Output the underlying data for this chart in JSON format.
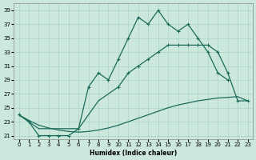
{
  "xlabel": "Humidex (Indice chaleur)",
  "bg_color": "#cce8dd",
  "grid_color": "#aad4c4",
  "line_color": "#1a6b5a",
  "xlim": [
    -0.5,
    23.5
  ],
  "ylim": [
    20.5,
    40
  ],
  "xticks": [
    0,
    1,
    2,
    3,
    4,
    5,
    6,
    7,
    8,
    9,
    10,
    11,
    12,
    13,
    14,
    15,
    16,
    17,
    18,
    19,
    20,
    21,
    22,
    23
  ],
  "yticks": [
    21,
    23,
    25,
    27,
    29,
    31,
    33,
    35,
    37,
    39
  ],
  "line1_x": [
    0,
    1,
    2,
    3,
    4,
    5,
    6,
    7,
    8,
    9,
    10,
    11,
    12,
    13,
    14,
    15,
    16,
    17,
    18,
    19,
    20,
    21
  ],
  "line1_y": [
    24,
    23,
    21,
    21,
    21,
    21,
    22,
    28,
    30,
    29,
    32,
    35,
    38,
    37,
    39,
    37,
    36,
    37,
    35,
    33,
    30,
    29
  ],
  "line2_x": [
    0,
    1,
    2,
    3,
    4,
    5,
    6,
    7,
    8,
    9,
    10,
    11,
    12,
    13,
    14,
    15,
    16,
    17,
    18,
    19,
    20,
    21,
    22,
    23
  ],
  "line2_y": [
    24,
    23,
    22,
    22,
    22,
    22,
    22,
    24,
    26,
    27,
    28,
    30,
    31,
    32,
    33,
    34,
    34,
    34,
    34,
    34,
    33,
    30,
    26,
    26
  ],
  "line3_x": [
    0,
    1,
    2,
    3,
    4,
    5,
    6,
    7,
    8,
    9,
    10,
    11,
    12,
    13,
    14,
    15,
    16,
    17,
    18,
    19,
    20,
    21,
    22,
    23
  ],
  "line3_y": [
    24,
    23.2,
    22.5,
    22.1,
    21.8,
    21.6,
    21.5,
    21.6,
    21.8,
    22.1,
    22.5,
    23.0,
    23.5,
    24.0,
    24.5,
    25.0,
    25.4,
    25.7,
    26.0,
    26.2,
    26.4,
    26.5,
    26.6,
    26.0
  ]
}
